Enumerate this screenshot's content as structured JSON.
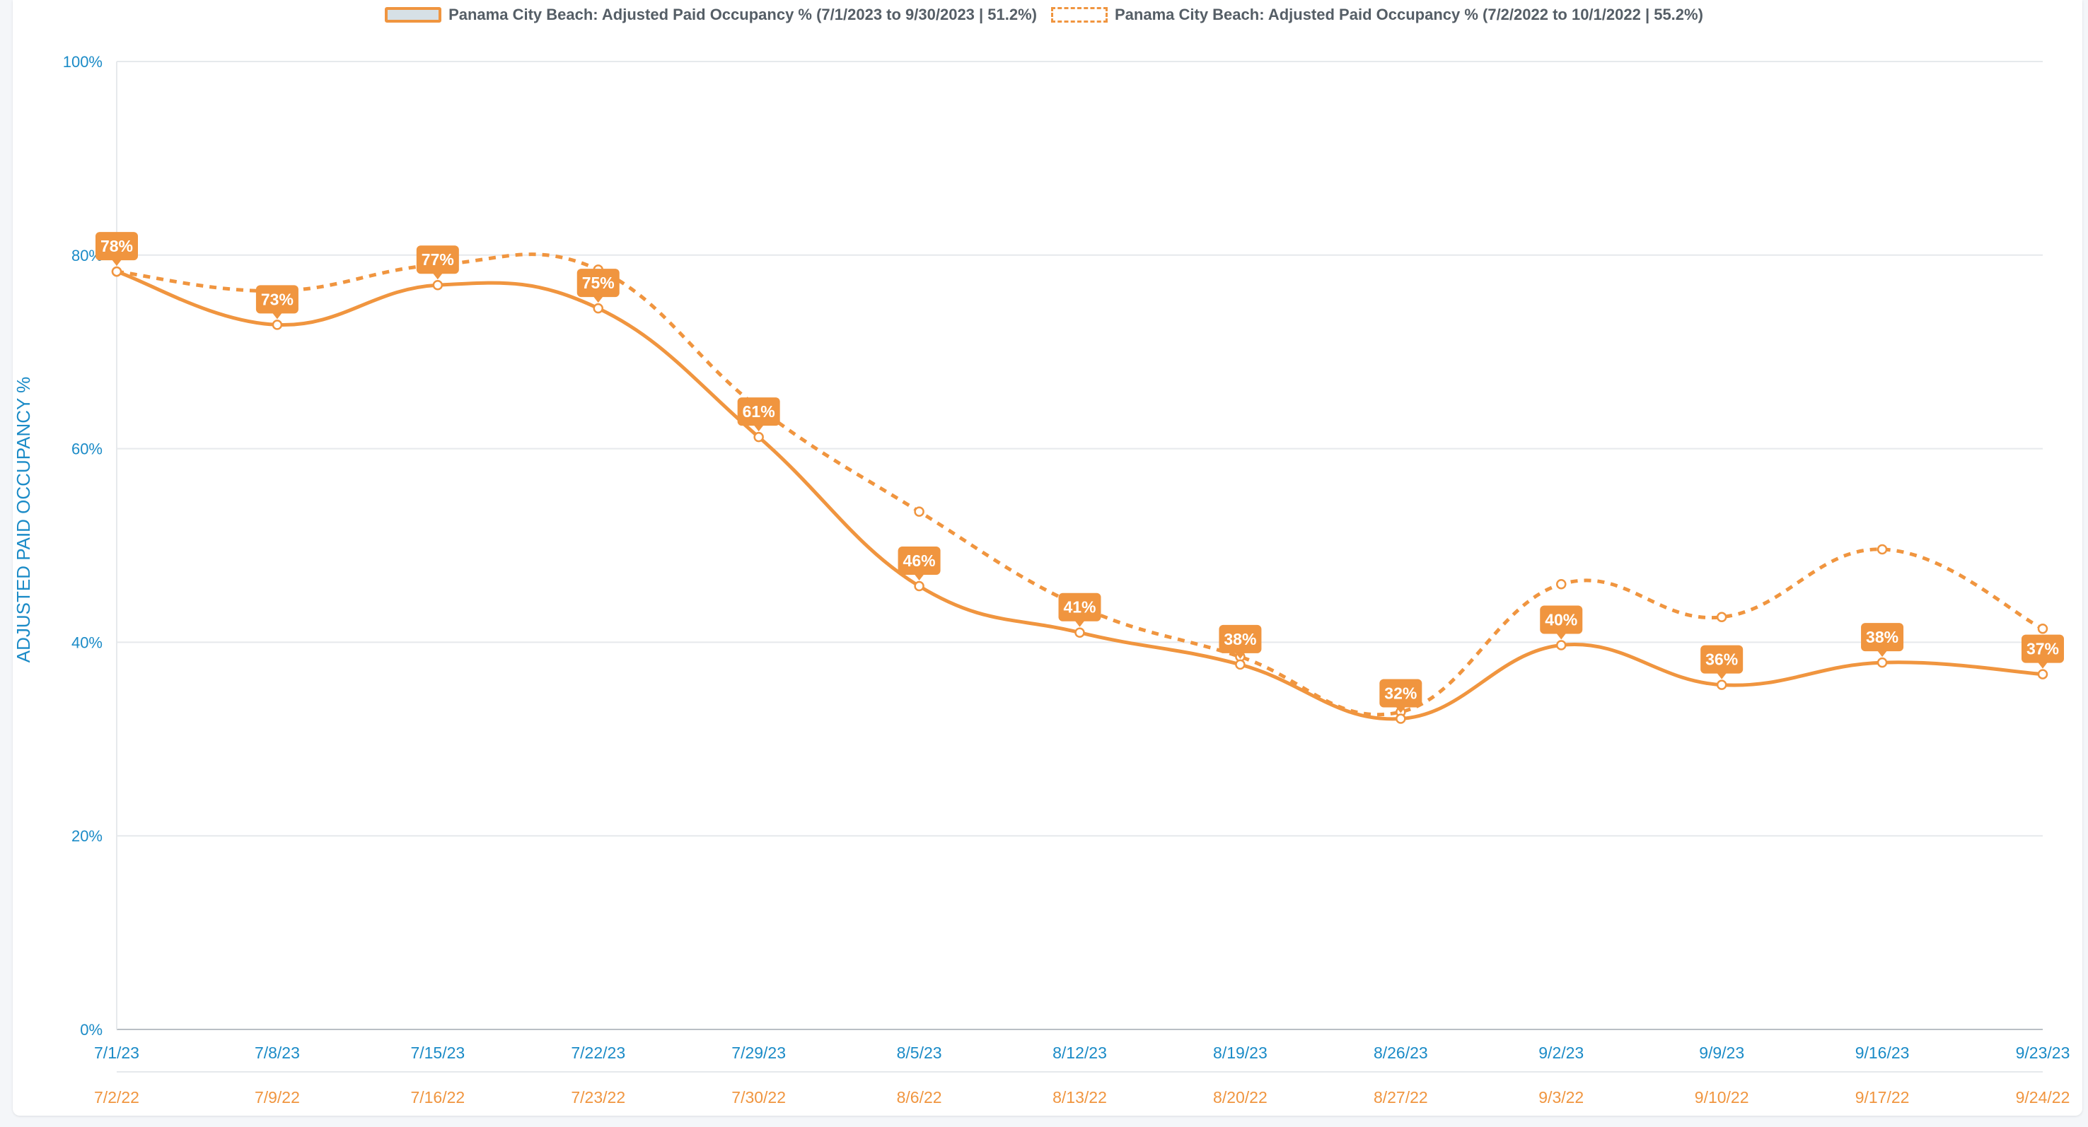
{
  "legend": {
    "current_label": "Panama City Beach: Adjusted Paid Occupancy % (7/1/2023 to 9/30/2023 | 51.2%)",
    "prior_label": "Panama City Beach: Adjusted Paid Occupancy % (7/2/2022 to 10/1/2022 | 55.2%)"
  },
  "colors": {
    "series": "#f0953f",
    "axis_text": "#1b8bc7",
    "grid": "#e6e9ec"
  },
  "chart_data": {
    "type": "line",
    "title": "",
    "ylabel": "ADJUSTED PAID OCCUPANCY %",
    "ylim": [
      0,
      100
    ],
    "yticks": [
      "0%",
      "20%",
      "40%",
      "60%",
      "80%",
      "100%"
    ],
    "x": [
      "7/1/23",
      "7/8/23",
      "7/15/23",
      "7/22/23",
      "7/29/23",
      "8/5/23",
      "8/12/23",
      "8/19/23",
      "8/26/23",
      "9/2/23",
      "9/9/23",
      "9/16/23",
      "9/23/23"
    ],
    "x_secondary": [
      "7/2/22",
      "7/9/22",
      "7/16/22",
      "7/23/22",
      "7/30/22",
      "8/6/22",
      "8/13/22",
      "8/20/22",
      "8/27/22",
      "9/3/22",
      "9/10/22",
      "9/17/22",
      "9/24/22"
    ],
    "grid": true,
    "legend_position": "top-center",
    "series": [
      {
        "name": "Panama City Beach: Adjusted Paid Occupancy % (7/1/2023 to 9/30/2023 | 51.2%)",
        "style": "solid",
        "values": [
          78.3,
          72.8,
          76.9,
          74.5,
          61.2,
          45.8,
          41.0,
          37.7,
          32.1,
          39.7,
          35.6,
          37.9,
          36.7
        ],
        "data_labels": [
          "78%",
          "73%",
          "77%",
          "75%",
          "61%",
          "46%",
          "41%",
          "38%",
          "32%",
          "40%",
          "36%",
          "38%",
          "37%"
        ]
      },
      {
        "name": "Panama City Beach: Adjusted Paid Occupancy % (7/2/2022 to 10/1/2022 | 55.2%)",
        "style": "dashed",
        "values": [
          78.3,
          76.3,
          79.0,
          78.5,
          64.2,
          53.5,
          43.7,
          38.5,
          32.8,
          46.0,
          42.6,
          49.6,
          41.4
        ]
      }
    ]
  }
}
